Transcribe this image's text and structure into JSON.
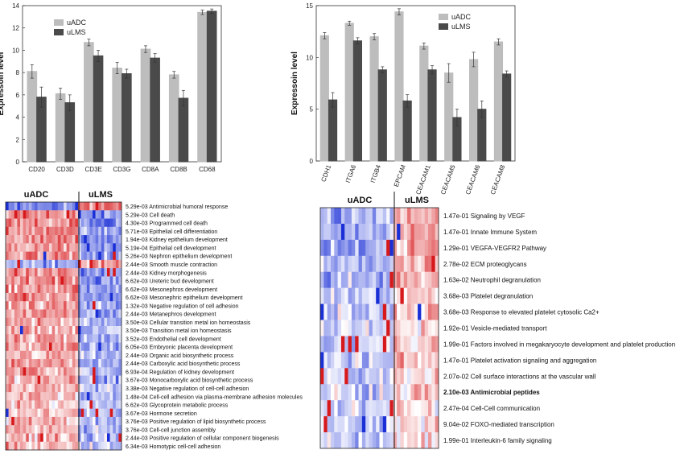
{
  "colors": {
    "uADC": "#bdbdbd",
    "uLMS": "#4a4a4a",
    "heat_high": "#d7191c",
    "heat_low": "#1a2fd6",
    "heat_mid": "#ffffff"
  },
  "chart_data": [
    {
      "type": "bar",
      "categories": [
        "CD20",
        "CD3D",
        "CD3E",
        "CD3G",
        "CD8A",
        "CD8B",
        "CD68"
      ],
      "series": [
        {
          "name": "uADC",
          "values": [
            8.1,
            6.1,
            10.7,
            8.4,
            10.1,
            7.8,
            13.4
          ],
          "errors": [
            0.6,
            0.5,
            0.3,
            0.5,
            0.3,
            0.3,
            0.2
          ]
        },
        {
          "name": "uLMS",
          "values": [
            5.8,
            5.3,
            9.5,
            7.9,
            9.3,
            5.7,
            13.5
          ],
          "errors": [
            0.9,
            0.7,
            0.5,
            0.4,
            0.4,
            0.7,
            0.2
          ]
        }
      ],
      "ylabel": "Expressoin level",
      "ylim": [
        0,
        14
      ],
      "yticks": [
        0,
        2,
        4,
        6,
        8,
        10,
        12,
        14
      ],
      "legend": "top-left"
    },
    {
      "type": "bar",
      "categories": [
        "CDH1",
        "ITGA6",
        "ITGB4",
        "EPCAM",
        "CEACAM1",
        "CEACAM5",
        "CEACAM6",
        "CEACAM8"
      ],
      "series": [
        {
          "name": "uADC",
          "values": [
            12.1,
            13.3,
            12.0,
            14.4,
            11.1,
            8.5,
            9.8,
            11.5
          ],
          "errors": [
            0.3,
            0.2,
            0.3,
            0.3,
            0.3,
            0.9,
            0.7,
            0.3
          ]
        },
        {
          "name": "uLMS",
          "values": [
            5.9,
            11.6,
            8.8,
            5.8,
            8.8,
            4.2,
            5.0,
            8.4
          ],
          "errors": [
            0.7,
            0.3,
            0.3,
            0.6,
            0.4,
            0.8,
            0.8,
            0.3
          ]
        }
      ],
      "ylabel": "Expressoin level",
      "ylim": [
        0,
        15
      ],
      "yticks": [
        0,
        5,
        10,
        15
      ],
      "legend": "top-right"
    },
    {
      "type": "heatmap",
      "group_labels": [
        "uADC",
        "uLMS"
      ],
      "row_labels": [
        "5.29e-03 Antimicrobial humoral response",
        "5.29e-03 Cell death",
        "4.30e-03 Programmed cell death",
        "5.71e-03 Epithelial cell differentiation",
        "1.94e-03 Kidney epithelium development",
        "5.19e-04 Epithelial cell development",
        "5.26e-03 Nephron epithelium development",
        "2.44e-03 Smooth muscle contraction",
        "2.44e-03 Kidney morphogenesis",
        "6.62e-03 Ureteric bud development",
        "6.62e-03 Mesonephros development",
        "6.62e-03 Mesonephric epithelium development",
        "1.32e-03 Negative regulation of cell adhesion",
        "2.44e-03 Metanephros development",
        "3.50e-03 Cellular transition metal ion homeostasis",
        "3.50e-03 Transition metal ion homeostasis",
        "3.52e-03 Endothelial cell development",
        "6.05e-03 Embryonic placenta development",
        "2.44e-03 Organic acid biosynthetic process",
        "2.44e-03 Carboxylic acid biosynthetic process",
        "6.93e-04 Regulation of kidney development",
        "3.67e-03 Monocarboxylic acid biosynthetic process",
        "3.38e-03 Negative regulation of cell-cell adhesion",
        "1.48e-04 Cell-cell adhesion via plasma-membrane adhesion molecules",
        "6.62e-03 Glycoprotein metabolic process",
        "3.67e-03 Hormone secretion",
        "3.76e-03 Positive regulation of lipid biosynthetic process",
        "3.76e-03 Cell-cell junction assembly",
        "2.44e-03 Positive regulation of cellular component biogenesis",
        "6.34e-03 Homotypic cell-cell adhesion"
      ]
    },
    {
      "type": "heatmap",
      "group_labels": [
        "uADC",
        "uLMS"
      ],
      "row_labels": [
        "1.47e-01 Signaling by VEGF",
        "1.47e-01 Innate Immune System",
        "1.29e-01 VEGFA-VEGFR2 Pathway",
        "2.78e-02 ECM proteoglycans",
        "1.63e-02 Neutrophil degranulation",
        "3.68e-03 Platelet degranulation",
        "3.68e-03 Response to elevated platelet cytosolic Ca2+",
        "1.92e-01 Vesicle-mediated transport",
        "1.99e-01 Factors involved in megakaryocyte development and platelet production",
        "1.47e-01 Platelet activation signaling and aggregation",
        "2.07e-02 Cell surface interactions at the vascular wall",
        "2.10e-03 Antimicrobial peptides",
        "2.47e-04 Cell-Cell communication",
        "9.04e-02 FOXO-mediated transcription",
        "1.99e-01 Interleukin-6 family signaling"
      ],
      "bold_row": 11
    }
  ]
}
